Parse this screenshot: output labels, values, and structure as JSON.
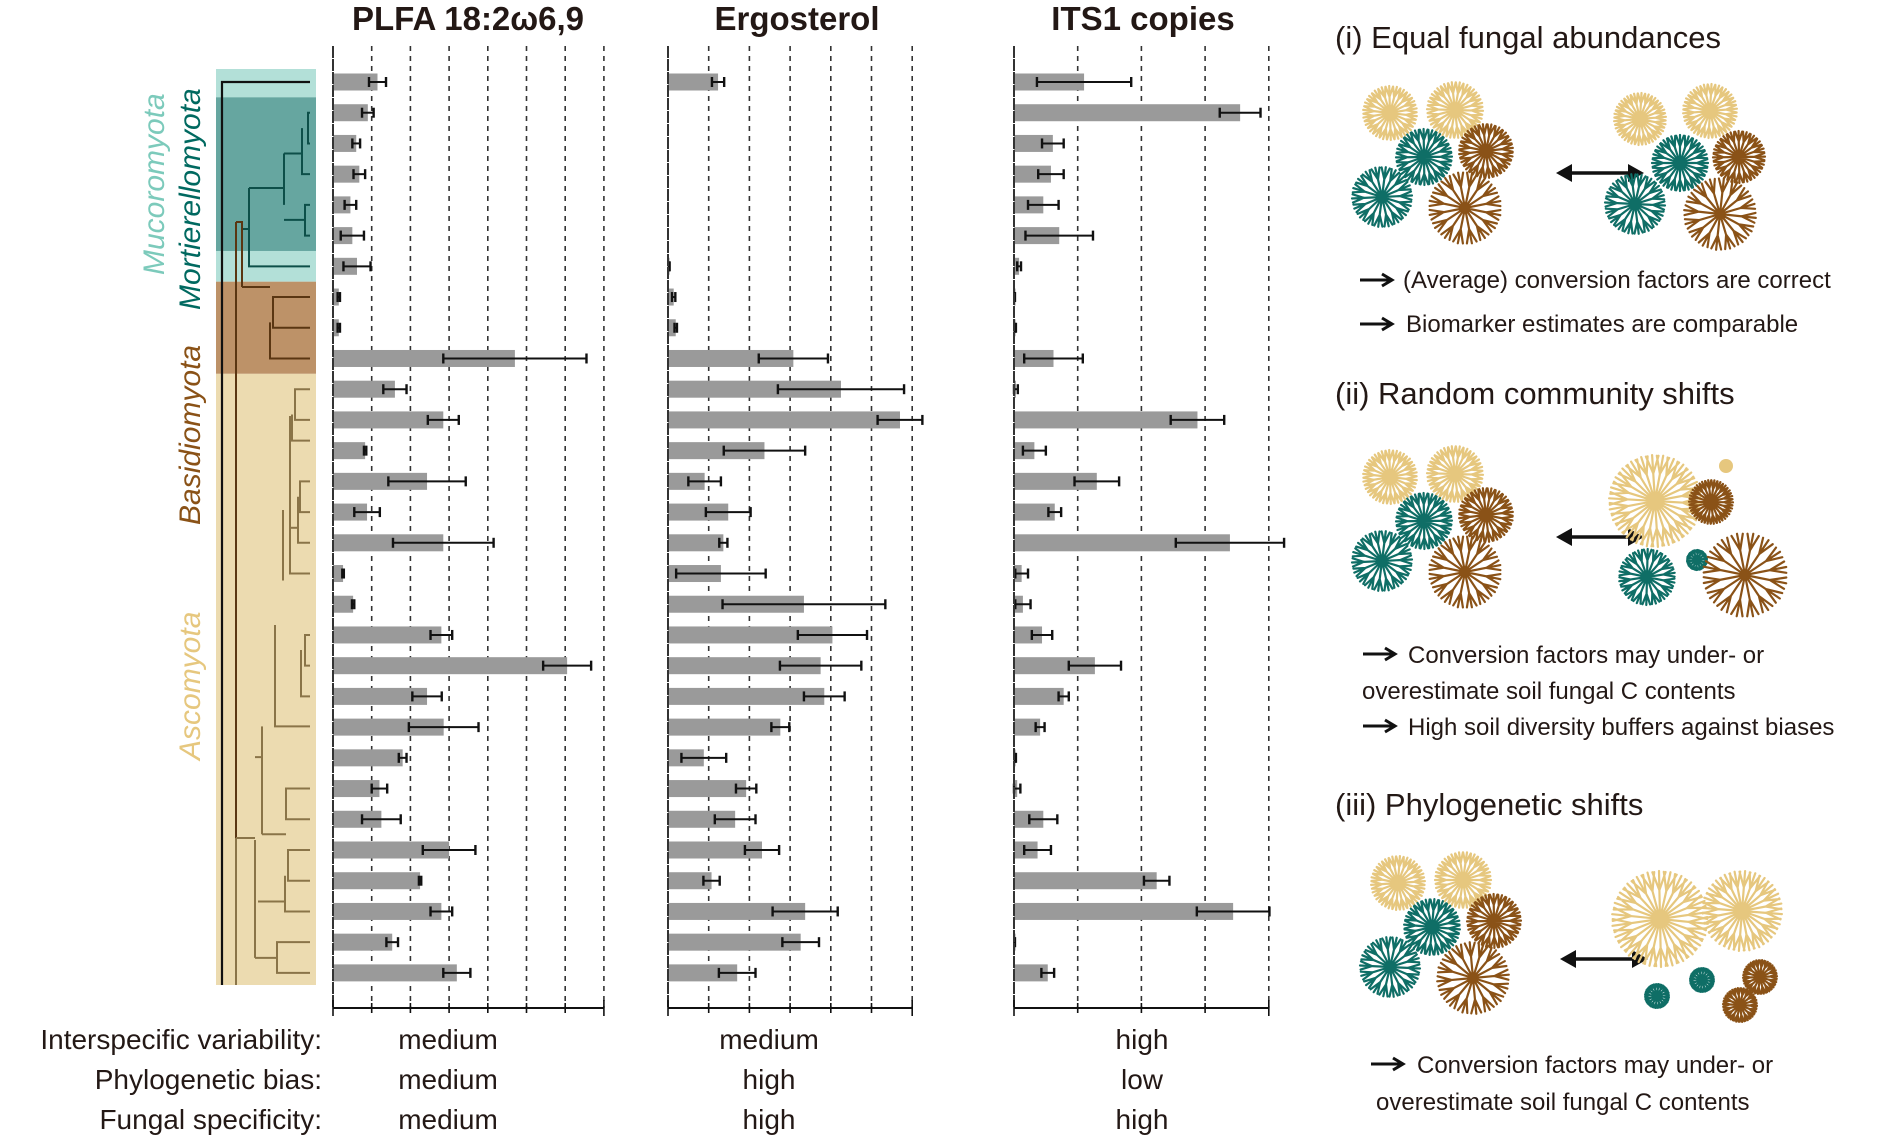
{
  "chart_data": {
    "type": "bar",
    "orientation": "horizontal",
    "n_taxa": 30,
    "value_units": "relative (grid interval = 1)",
    "grid": "dashed vertical",
    "phyla": [
      {
        "name": "Mucoromyota",
        "rows": [
          1,
          7
        ],
        "color": "#b3e0d8",
        "label_color": "#7ccabb"
      },
      {
        "name": "Mortierellomyota",
        "rows": [
          2,
          6
        ],
        "color": "#66a6a0",
        "label_color": "#006960"
      },
      {
        "name": "Basidiomyota",
        "rows": [
          8,
          10
        ],
        "color": "#bd9268",
        "label_color": "#8a5217"
      },
      {
        "name": "Ascomyota",
        "rows": [
          11,
          30
        ],
        "color": "#ecdbb0",
        "label_color": "#e6c77e"
      }
    ],
    "panels": [
      {
        "title": "PLFA 18:2ω6,9",
        "xlim": [
          0,
          7
        ],
        "gridlines": [
          1,
          2,
          3,
          4,
          5,
          6,
          7
        ],
        "values": [
          1.15,
          0.9,
          0.6,
          0.68,
          0.45,
          0.5,
          0.62,
          0.15,
          0.15,
          4.7,
          1.6,
          2.85,
          0.83,
          2.43,
          0.88,
          2.85,
          0.26,
          0.52,
          2.8,
          6.05,
          2.43,
          2.86,
          1.8,
          1.2,
          1.25,
          3.0,
          2.25,
          2.8,
          1.53,
          3.2
        ],
        "errors": [
          0.22,
          0.15,
          0.1,
          0.15,
          0.15,
          0.3,
          0.35,
          0.03,
          0.03,
          1.85,
          0.3,
          0.4,
          0.03,
          1.0,
          0.33,
          1.3,
          0.02,
          0.03,
          0.28,
          0.62,
          0.38,
          0.9,
          0.1,
          0.2,
          0.5,
          0.68,
          0.03,
          0.28,
          0.15,
          0.35
        ],
        "interspecific_variability": "medium",
        "phylogenetic_bias": "medium",
        "fungal_specificity": "medium"
      },
      {
        "title": "Ergosterol",
        "xlim": [
          0,
          6
        ],
        "gridlines": [
          1,
          2,
          3,
          4,
          5,
          6
        ],
        "values": [
          1.23,
          null,
          null,
          null,
          null,
          null,
          0.03,
          0.14,
          0.19,
          3.08,
          4.25,
          5.7,
          2.37,
          0.9,
          1.48,
          1.36,
          1.3,
          3.34,
          4.04,
          3.75,
          3.84,
          2.76,
          0.88,
          1.92,
          1.65,
          2.31,
          1.07,
          3.37,
          3.26,
          1.7
        ],
        "errors": [
          0.15,
          null,
          null,
          null,
          null,
          null,
          0.01,
          0.04,
          0.03,
          0.85,
          1.55,
          0.55,
          1.0,
          0.4,
          0.55,
          0.1,
          1.1,
          2.0,
          0.85,
          1.0,
          0.5,
          0.22,
          0.55,
          0.25,
          0.5,
          0.42,
          0.2,
          0.8,
          0.45,
          0.45
        ],
        "interspecific_variability": "medium",
        "phylogenetic_bias": "high",
        "fungal_specificity": "high"
      },
      {
        "title": "ITS1 copies",
        "xlim": [
          0,
          4
        ],
        "gridlines": [
          1,
          2,
          3,
          4
        ],
        "values": [
          1.1,
          3.55,
          0.61,
          0.58,
          0.46,
          0.71,
          0.08,
          0.01,
          0.02,
          0.62,
          0.03,
          2.88,
          0.32,
          1.3,
          0.64,
          3.39,
          0.12,
          0.14,
          0.44,
          1.27,
          0.78,
          0.41,
          0.02,
          0.05,
          0.46,
          0.37,
          2.24,
          3.44,
          0.01,
          0.53
        ],
        "errors": [
          0.74,
          0.32,
          0.17,
          0.2,
          0.24,
          0.53,
          0.03,
          0.005,
          0.01,
          0.46,
          0.03,
          0.42,
          0.18,
          0.35,
          0.1,
          0.85,
          0.1,
          0.12,
          0.16,
          0.41,
          0.08,
          0.07,
          0.01,
          0.05,
          0.22,
          0.21,
          0.2,
          0.57,
          0.005,
          0.1
        ],
        "interspecific_variability": "high",
        "phylogenetic_bias": "low",
        "fungal_specificity": "high"
      }
    ],
    "bar_color": "#9a9a9a",
    "row_labels": [
      "Interspecific variability:",
      "Phylogenetic bias:",
      "Fungal specificity:"
    ]
  },
  "scenarios": [
    {
      "title": "(i) Equal fungal abundances",
      "bullets": [
        [
          "(Average) conversion factors are correct"
        ],
        [
          "Biomarker estimates are comparable"
        ]
      ]
    },
    {
      "title": "(ii) Random community shifts",
      "bullets": [
        [
          "Conversion factors may under- or",
          "overestimate soil fungal C contents"
        ],
        [
          "High soil diversity buffers against biases"
        ]
      ]
    },
    {
      "title": "(iii) Phylogenetic shifts",
      "bullets": [
        [
          "Conversion factors may under- or",
          "overestimate soil fungal C contents"
        ]
      ]
    }
  ],
  "colors": {
    "asco": "#e6c77e",
    "basidio": "#8a5217",
    "mortierello": "#0f6e66",
    "text": "#231815"
  }
}
